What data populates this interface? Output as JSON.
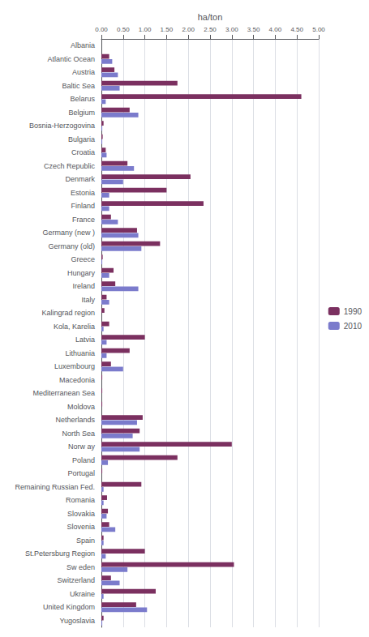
{
  "chart_data": {
    "type": "bar",
    "orientation": "horizontal",
    "xlabel": "ha/ton",
    "categories": [
      "Albania",
      "Atlantic Ocean",
      "Austria",
      "Baltic Sea",
      "Belarus",
      "Belgium",
      "Bosnia-Herzogovina",
      "Bulgaria",
      "Croatia",
      "Czech Republic",
      "Denmark",
      "Estonia",
      "Finland",
      "France",
      "Germany (new )",
      "Germany (old)",
      "Greece",
      "Hungary",
      "Ireland",
      "Italy",
      "Kalingrad region",
      "Kola, Karelia",
      "Latvia",
      "Lithuania",
      "Luxembourg",
      "Macedonia",
      "Mediterranean Sea",
      "Moldova",
      "Netherlands",
      "North Sea",
      "Norw ay",
      "Poland",
      "Portugal",
      "Remaining Russian Fed.",
      "Romania",
      "Slovakia",
      "Slovenia",
      "Spain",
      "St.Petersburg Region",
      "Sw eden",
      "Switzerland",
      "Ukraine",
      "United Kingdom",
      "Yugoslavia"
    ],
    "series": [
      {
        "name": "1990",
        "color": "#7B3060",
        "values": [
          0.0,
          0.18,
          0.3,
          1.75,
          4.6,
          0.65,
          0.05,
          0.03,
          0.1,
          0.6,
          2.05,
          1.5,
          2.35,
          0.22,
          0.82,
          1.35,
          0.03,
          0.28,
          0.32,
          0.12,
          0.07,
          0.18,
          1.0,
          0.65,
          0.22,
          0.02,
          0.02,
          0.02,
          0.95,
          0.88,
          3.0,
          1.75,
          0.02,
          0.92,
          0.13,
          0.15,
          0.18,
          0.05,
          1.0,
          3.05,
          0.22,
          1.25,
          0.8,
          0.05
        ]
      },
      {
        "name": "2010",
        "color": "#7B7BCC",
        "values": [
          0.0,
          0.25,
          0.38,
          0.42,
          0.1,
          0.85,
          0.02,
          0.02,
          0.12,
          0.75,
          0.5,
          0.18,
          0.18,
          0.38,
          0.85,
          0.92,
          0.02,
          0.18,
          0.85,
          0.18,
          0.0,
          0.05,
          0.12,
          0.12,
          0.5,
          0.0,
          0.0,
          0.0,
          0.82,
          0.72,
          0.88,
          0.15,
          0.0,
          0.05,
          0.05,
          0.12,
          0.32,
          0.05,
          0.1,
          0.6,
          0.42,
          0.05,
          1.05,
          0.02
        ]
      }
    ],
    "xlim": [
      0,
      5.0
    ],
    "xticks": [
      {
        "value": 0.0,
        "label": "0.00"
      },
      {
        "value": 0.5,
        "label": "0.50"
      },
      {
        "value": 1.0,
        "label": "1.00"
      },
      {
        "value": 1.5,
        "label": "1.50"
      },
      {
        "value": 2.0,
        "label": "2.00"
      },
      {
        "value": 2.5,
        "label": "2.50"
      },
      {
        "value": 3.0,
        "label": "3.00"
      },
      {
        "value": 3.5,
        "label": "3.50"
      },
      {
        "value": 4.0,
        "label": "4.00"
      },
      {
        "value": 4.5,
        "label": "4.50"
      },
      {
        "value": 5.0,
        "label": "5.00"
      }
    ],
    "grid": true,
    "legend": "right"
  }
}
